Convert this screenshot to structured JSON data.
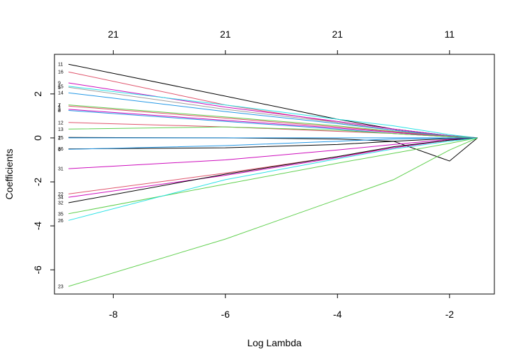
{
  "chart_data": {
    "type": "line",
    "title": "",
    "xlabel": "Log Lambda",
    "ylabel": "Coefficients",
    "xlim": [
      -9.05,
      -1.2
    ],
    "ylim": [
      -7.1,
      3.8
    ],
    "grid": false,
    "legend": "none",
    "x_ticks": [
      -8,
      -6,
      -4,
      -2
    ],
    "y_ticks": [
      -6,
      -4,
      -2,
      0,
      2
    ],
    "top_axis": {
      "ticks": [
        -8.0,
        -6.0,
        -4.0,
        -2.0
      ],
      "labels": [
        "21",
        "21",
        "21",
        "11"
      ]
    },
    "series": [
      {
        "label": "11",
        "color": "#000000",
        "x": [
          -8.8,
          -6.0,
          -4.0,
          -3.0,
          -2.0,
          -1.5
        ],
        "y": [
          3.35,
          1.9,
          0.85,
          0.4,
          0.1,
          0
        ]
      },
      {
        "label": "16",
        "color": "#DF536B",
        "x": [
          -8.8,
          -6.0,
          -4.0,
          -3.0,
          -2.0,
          -1.5
        ],
        "y": [
          3.0,
          1.5,
          0.7,
          0.35,
          0.08,
          0
        ]
      },
      {
        "label": "9",
        "color": "#CD0BBC",
        "x": [
          -8.8,
          -6.0,
          -4.0,
          -3.0,
          -2.0,
          -1.5
        ],
        "y": [
          2.5,
          1.4,
          0.75,
          0.4,
          0.1,
          0
        ]
      },
      {
        "label": "15",
        "color": "#28E2E5",
        "x": [
          -8.8,
          -6.0,
          -4.0,
          -3.0,
          -2.0,
          -1.5
        ],
        "y": [
          2.35,
          1.5,
          0.85,
          0.55,
          0.15,
          0
        ]
      },
      {
        "label": "5",
        "color": "#9E9E9E",
        "x": [
          -8.8,
          -6.0,
          -4.0,
          -3.0,
          -2.0,
          -1.5
        ],
        "y": [
          2.3,
          1.3,
          0.7,
          0.35,
          0.08,
          0
        ]
      },
      {
        "label": "14",
        "color": "#2297E6",
        "x": [
          -8.8,
          -6.0,
          -4.0,
          -3.0,
          -2.0,
          -1.5
        ],
        "y": [
          2.05,
          1.2,
          0.65,
          0.35,
          0.08,
          0
        ]
      },
      {
        "label": "7",
        "color": "#61D04F",
        "x": [
          -8.8,
          -6.0,
          -4.0,
          -3.0,
          -2.0,
          -1.5
        ],
        "y": [
          1.5,
          0.95,
          0.55,
          0.3,
          0.07,
          0
        ]
      },
      {
        "label": "4",
        "color": "#DF536B",
        "x": [
          -8.8,
          -6.0,
          -4.0,
          -3.0,
          -2.0,
          -1.5
        ],
        "y": [
          1.45,
          0.9,
          0.5,
          0.28,
          0.06,
          0
        ]
      },
      {
        "label": "8",
        "color": "#2297E6",
        "x": [
          -8.8,
          -6.0,
          -4.0,
          -3.0,
          -2.0,
          -1.5
        ],
        "y": [
          1.25,
          0.75,
          0.4,
          0.2,
          0.05,
          0
        ]
      },
      {
        "label": "3",
        "color": "#CD0BBC",
        "x": [
          -8.8,
          -6.0,
          -4.0,
          -3.0,
          -2.0,
          -1.5
        ],
        "y": [
          1.3,
          0.8,
          0.45,
          0.25,
          0.05,
          0
        ]
      },
      {
        "label": "12",
        "color": "#DF536B",
        "x": [
          -8.8,
          -6.0,
          -4.0,
          -3.0,
          -2.0,
          -1.5
        ],
        "y": [
          0.7,
          0.5,
          0.3,
          0.2,
          0.05,
          0
        ]
      },
      {
        "label": "13",
        "color": "#61D04F",
        "x": [
          -8.8,
          -6.0,
          -4.0,
          -3.0,
          -2.0,
          -1.5
        ],
        "y": [
          0.4,
          0.5,
          0.35,
          0.2,
          0.05,
          0
        ]
      },
      {
        "label": "25",
        "color": "#000000",
        "x": [
          -8.8,
          -6.0,
          -4.0,
          -3.0,
          -2.0,
          -1.5
        ],
        "y": [
          0.02,
          0.0,
          -0.05,
          -0.15,
          -1.05,
          0
        ]
      },
      {
        "label": "1",
        "color": "#2297E6",
        "x": [
          -8.8,
          -6.0,
          -4.0,
          -3.0,
          -2.0,
          -1.5
        ],
        "y": [
          0.0,
          0.0,
          0.0,
          0.0,
          0.0,
          0
        ]
      },
      {
        "label": "36",
        "color": "#000000",
        "x": [
          -8.8,
          -6.0,
          -4.0,
          -3.0,
          -2.0,
          -1.5
        ],
        "y": [
          -0.5,
          -0.45,
          -0.3,
          -0.15,
          -0.03,
          0
        ]
      },
      {
        "label": "6",
        "color": "#2297E6",
        "x": [
          -8.8,
          -6.0,
          -4.0,
          -3.0,
          -2.0,
          -1.5
        ],
        "y": [
          -0.52,
          -0.35,
          -0.15,
          -0.05,
          -0.01,
          0
        ]
      },
      {
        "label": "31",
        "color": "#CD0BBC",
        "x": [
          -8.8,
          -6.0,
          -4.0,
          -3.0,
          -2.0,
          -1.5
        ],
        "y": [
          -1.4,
          -1.0,
          -0.55,
          -0.3,
          -0.07,
          0
        ]
      },
      {
        "label": "22",
        "color": "#DF536B",
        "x": [
          -8.8,
          -6.0,
          -4.0,
          -3.0,
          -2.0,
          -1.5
        ],
        "y": [
          -2.55,
          -1.6,
          -0.85,
          -0.45,
          -0.1,
          0
        ]
      },
      {
        "label": "34",
        "color": "#CD0BBC",
        "x": [
          -8.8,
          -6.0,
          -4.0,
          -3.0,
          -2.0,
          -1.5
        ],
        "y": [
          -2.7,
          -1.7,
          -0.9,
          -0.45,
          -0.1,
          0
        ]
      },
      {
        "label": "32",
        "color": "#000000",
        "x": [
          -8.8,
          -6.0,
          -4.0,
          -3.0,
          -2.0,
          -1.5
        ],
        "y": [
          -2.95,
          -1.65,
          -0.85,
          -0.4,
          -0.1,
          0
        ]
      },
      {
        "label": "35",
        "color": "#61D04F",
        "x": [
          -8.8,
          -6.0,
          -4.0,
          -3.0,
          -2.0,
          -1.5
        ],
        "y": [
          -3.45,
          -2.1,
          -1.15,
          -0.7,
          -0.25,
          0
        ]
      },
      {
        "label": "26",
        "color": "#28E2E5",
        "x": [
          -8.8,
          -6.0,
          -4.0,
          -3.0,
          -2.0,
          -1.5
        ],
        "y": [
          -3.75,
          -1.9,
          -0.95,
          -0.5,
          -0.15,
          0
        ]
      },
      {
        "label": "23",
        "color": "#61D04F",
        "x": [
          -8.8,
          -6.0,
          -4.0,
          -3.0,
          -2.0,
          -1.5
        ],
        "y": [
          -6.75,
          -4.6,
          -2.8,
          -1.9,
          -0.55,
          0
        ]
      }
    ]
  }
}
